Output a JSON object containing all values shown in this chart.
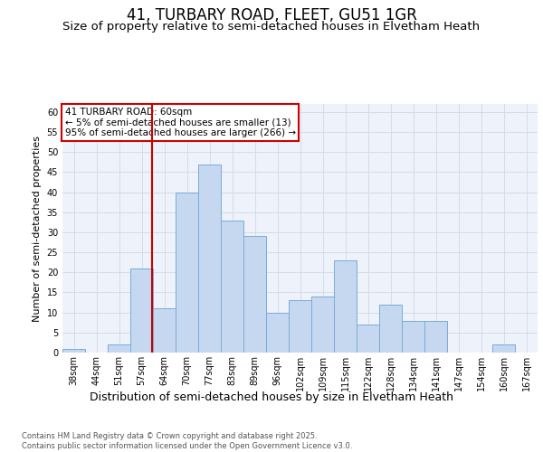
{
  "title": "41, TURBARY ROAD, FLEET, GU51 1GR",
  "subtitle": "Size of property relative to semi-detached houses in Elvetham Heath",
  "xlabel": "Distribution of semi-detached houses by size in Elvetham Heath",
  "ylabel": "Number of semi-detached properties",
  "categories": [
    "38sqm",
    "44sqm",
    "51sqm",
    "57sqm",
    "64sqm",
    "70sqm",
    "77sqm",
    "83sqm",
    "89sqm",
    "96sqm",
    "102sqm",
    "109sqm",
    "115sqm",
    "122sqm",
    "128sqm",
    "134sqm",
    "141sqm",
    "147sqm",
    "154sqm",
    "160sqm",
    "167sqm"
  ],
  "values": [
    1,
    0,
    2,
    21,
    11,
    40,
    47,
    33,
    29,
    10,
    13,
    14,
    23,
    7,
    12,
    8,
    8,
    0,
    0,
    2,
    0
  ],
  "bar_color": "#c5d8f0",
  "bar_edge_color": "#7aabdb",
  "grid_color": "#d0d8e8",
  "background_color": "#eef2fa",
  "annotation_text": "41 TURBARY ROAD: 60sqm\n← 5% of semi-detached houses are smaller (13)\n95% of semi-detached houses are larger (266) →",
  "vline_color": "#cc0000",
  "vline_x": 3.45,
  "ylim": [
    0,
    62
  ],
  "yticks": [
    0,
    5,
    10,
    15,
    20,
    25,
    30,
    35,
    40,
    45,
    50,
    55,
    60
  ],
  "footer": "Contains HM Land Registry data © Crown copyright and database right 2025.\nContains public sector information licensed under the Open Government Licence v3.0.",
  "title_fontsize": 12,
  "subtitle_fontsize": 9.5,
  "xlabel_fontsize": 9,
  "ylabel_fontsize": 8,
  "tick_fontsize": 7,
  "footer_fontsize": 6,
  "annot_fontsize": 7.5
}
